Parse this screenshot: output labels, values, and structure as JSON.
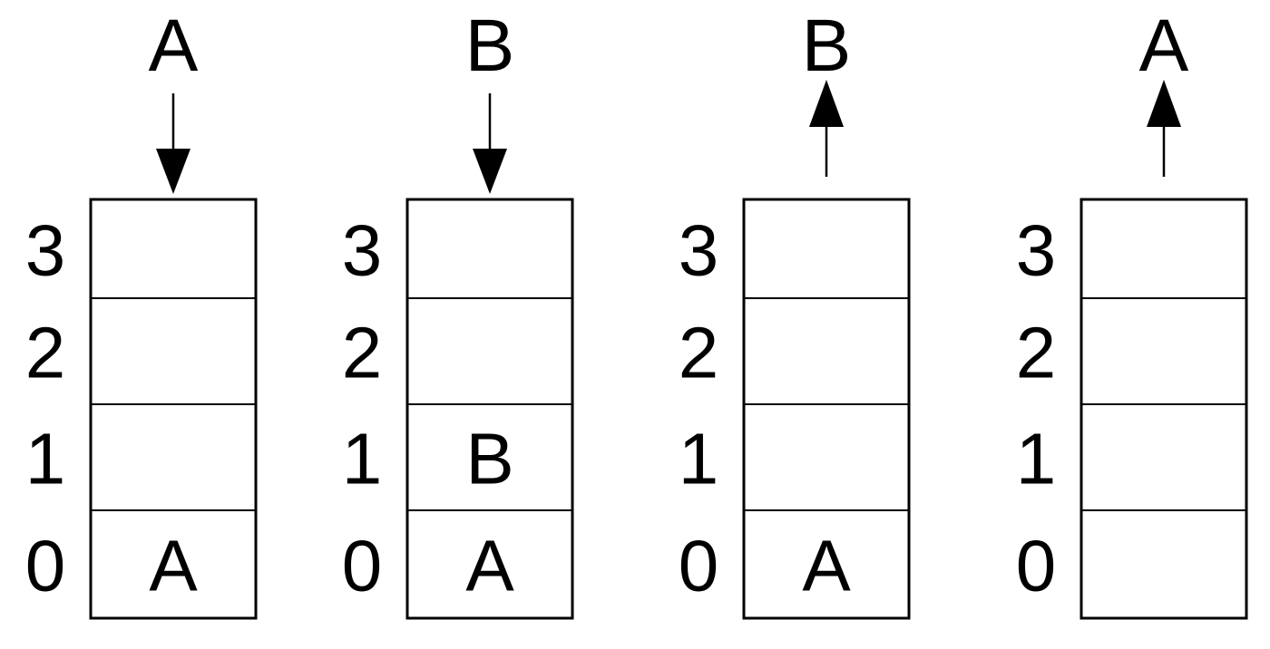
{
  "diagram": {
    "index_labels": [
      "3",
      "2",
      "1",
      "0"
    ],
    "stacks": [
      {
        "operation": "push",
        "top_label": "A",
        "cells": [
          "",
          "",
          "",
          "A"
        ]
      },
      {
        "operation": "push",
        "top_label": "B",
        "cells": [
          "",
          "",
          "B",
          "A"
        ]
      },
      {
        "operation": "pop",
        "top_label": "B",
        "cells": [
          "",
          "",
          "",
          "A"
        ]
      },
      {
        "operation": "pop",
        "top_label": "A",
        "cells": [
          "",
          "",
          "",
          ""
        ]
      }
    ],
    "colors": {
      "stroke": "#000000",
      "background": "#ffffff"
    }
  }
}
